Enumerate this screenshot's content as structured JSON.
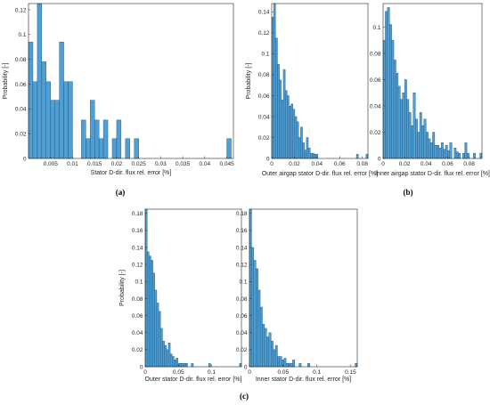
{
  "colors": {
    "bar_fill": "#4f9fd4",
    "bar_edge": "#1c4f74",
    "axis": "#262626"
  },
  "chart_data": [
    {
      "type": "bar",
      "id": "a",
      "xlabel": "Stator D-dir. flux rel. error [%]",
      "ylabel": "Probability [-]",
      "xlim": [
        0,
        0.0465
      ],
      "ylim": [
        0,
        0.125
      ],
      "xticks": [
        0.005,
        0.01,
        0.015,
        0.02,
        0.025,
        0.03,
        0.035,
        0.04,
        0.045
      ],
      "xtick_labels": [
        "0.005",
        "0.01",
        "0.015",
        "0.02",
        "0.025",
        "0.03",
        "0.035",
        "0.04",
        "0.045"
      ],
      "yticks": [
        0,
        0.02,
        0.04,
        0.06,
        0.08,
        0.1,
        0.12
      ],
      "ytick_labels": [
        "0",
        "0.02",
        "0.04",
        "0.06",
        "0.08",
        "0.1",
        "0.12"
      ],
      "bin_width": 0.001,
      "values": [
        0.094,
        0.062,
        0.125,
        0.078,
        0.062,
        0.047,
        0.047,
        0.094,
        0.062,
        0.062,
        0.0,
        0.0,
        0.031,
        0.016,
        0.047,
        0.031,
        0.016,
        0.031,
        0.0,
        0.016,
        0.031,
        0.0,
        0.016,
        0.0,
        0.016,
        0.0,
        0,
        0,
        0,
        0,
        0,
        0,
        0,
        0,
        0,
        0,
        0,
        0,
        0,
        0,
        0,
        0,
        0,
        0,
        0,
        0.016
      ],
      "caption": "(a)"
    },
    {
      "type": "bar",
      "id": "b1",
      "xlabel": "Outer airgap stator D-dir. flux rel. error [%]",
      "ylabel": "Probability [-]",
      "xlim": [
        0,
        0.085
      ],
      "ylim": [
        0,
        0.148
      ],
      "xticks": [
        0,
        0.02,
        0.04,
        0.06,
        0.08
      ],
      "xtick_labels": [
        "0",
        "0.02",
        "0.04",
        "0.06",
        "0.08"
      ],
      "yticks": [
        0,
        0.02,
        0.04,
        0.06,
        0.08,
        0.1,
        0.12,
        0.14
      ],
      "ytick_labels": [
        "0",
        "0.02",
        "0.04",
        "0.06",
        "0.08",
        "0.1",
        "0.12",
        "0.14"
      ],
      "bin_width": 0.0017,
      "values": [
        0.135,
        0.148,
        0.115,
        0.09,
        0.075,
        0.056,
        0.085,
        0.065,
        0.06,
        0.05,
        0.052,
        0.047,
        0.04,
        0.035,
        0.02,
        0.03,
        0.015,
        0.008,
        0.02,
        0.01,
        0.005,
        0.005,
        0.004,
        0.004,
        0,
        0,
        0,
        0,
        0,
        0,
        0,
        0,
        0,
        0,
        0,
        0,
        0,
        0,
        0,
        0,
        0,
        0,
        0,
        0,
        0.004,
        0,
        0,
        0,
        0,
        0.004
      ],
      "caption": ""
    },
    {
      "type": "bar",
      "id": "b2",
      "xlabel": "Inner airgap stator D-dir. flux rel. error [%]",
      "ylabel": "",
      "xlim": [
        0,
        0.092
      ],
      "ylim": [
        0,
        0.118
      ],
      "xticks": [
        0,
        0.02,
        0.04,
        0.06,
        0.08
      ],
      "xtick_labels": [
        "0",
        "0.02",
        "0.04",
        "0.06",
        "0.08"
      ],
      "yticks": [
        0,
        0.02,
        0.04,
        0.06,
        0.08,
        0.1
      ],
      "ytick_labels": [
        "0",
        "0.02",
        "0.04",
        "0.06",
        "0.08",
        "0.1"
      ],
      "bin_width": 0.002,
      "values": [
        0.09,
        0.112,
        0.115,
        0.102,
        0.09,
        0.075,
        0.065,
        0.055,
        0.045,
        0.05,
        0.06,
        0.045,
        0.035,
        0.025,
        0.05,
        0.03,
        0.02,
        0.035,
        0.025,
        0.03,
        0.02,
        0.015,
        0.012,
        0.02,
        0.01,
        0.01,
        0.008,
        0.012,
        0.007,
        0.01,
        0.006,
        0.012,
        0.0,
        0.008,
        0.005,
        0.004,
        0.0,
        0.004,
        0.012,
        0.004,
        0.0,
        0.0,
        0.004,
        0.0,
        0.0,
        0.004
      ],
      "caption": "(b)"
    },
    {
      "type": "bar",
      "id": "c1",
      "xlabel": "Outer stator D-dir. flux rel. error [%]",
      "ylabel": "Probability [-]",
      "xlim": [
        0,
        0.145
      ],
      "ylim": [
        0,
        0.185
      ],
      "xticks": [
        0,
        0.05,
        0.1
      ],
      "xtick_labels": [
        "0",
        "0.05",
        "0.1"
      ],
      "yticks": [
        0,
        0.02,
        0.04,
        0.06,
        0.08,
        0.1,
        0.12,
        0.14,
        0.16,
        0.18
      ],
      "ytick_labels": [
        "0",
        "0.02",
        "0.04",
        "0.06",
        "0.08",
        "0.1",
        "0.12",
        "0.14",
        "0.16",
        "0.18"
      ],
      "bin_width": 0.0029,
      "values": [
        0.185,
        0.135,
        0.13,
        0.125,
        0.11,
        0.09,
        0.075,
        0.065,
        0.045,
        0.03,
        0.025,
        0.02,
        0.028,
        0.015,
        0.012,
        0.008,
        0.01,
        0.004,
        0.004,
        0.004,
        0.004,
        0.004,
        0,
        0,
        0.004,
        0,
        0,
        0,
        0,
        0,
        0,
        0,
        0,
        0.004,
        0,
        0,
        0,
        0,
        0,
        0,
        0,
        0,
        0,
        0,
        0,
        0,
        0,
        0,
        0,
        0.004
      ],
      "caption": "(c)"
    },
    {
      "type": "bar",
      "id": "c2",
      "xlabel": "Inner stator D-dir. flux rel. error [%]",
      "ylabel": "",
      "xlim": [
        0,
        0.16
      ],
      "ylim": [
        0,
        0.185
      ],
      "xticks": [
        0,
        0.05,
        0.1,
        0.15
      ],
      "xtick_labels": [
        "0",
        "0.05",
        "0.1",
        "0.15"
      ],
      "yticks": [
        0,
        0.02,
        0.04,
        0.06,
        0.08,
        0.1,
        0.12,
        0.14,
        0.16,
        0.18
      ],
      "ytick_labels": [
        "0",
        "0.02",
        "0.04",
        "0.06",
        "0.08",
        "0.1",
        "0.12",
        "0.14",
        "0.16",
        "0.18"
      ],
      "bin_width": 0.0032,
      "values": [
        0.185,
        0.14,
        0.125,
        0.115,
        0.09,
        0.07,
        0.05,
        0.045,
        0.035,
        0.04,
        0.03,
        0.02,
        0.025,
        0.012,
        0.012,
        0.008,
        0.01,
        0.004,
        0.004,
        0.004,
        0.008,
        0,
        0,
        0.004,
        0,
        0,
        0,
        0.004,
        0,
        0,
        0,
        0,
        0,
        0,
        0,
        0,
        0,
        0,
        0,
        0,
        0,
        0,
        0,
        0,
        0,
        0,
        0,
        0,
        0,
        0.004
      ],
      "caption": ""
    }
  ]
}
